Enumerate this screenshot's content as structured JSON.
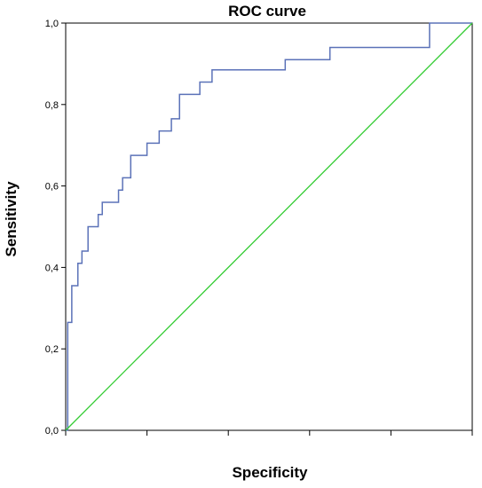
{
  "chart_data": {
    "type": "line",
    "title": "ROC curve",
    "xlabel": "Specificity",
    "ylabel": "Sensitivity",
    "xlim": [
      0,
      1
    ],
    "ylim": [
      0,
      1
    ],
    "x_ticks": [
      0,
      0.2,
      0.4,
      0.6,
      0.8,
      1.0
    ],
    "y_ticks": [
      0.0,
      0.2,
      0.4,
      0.6,
      0.8,
      1.0
    ],
    "y_tick_labels": [
      "0,0",
      "0,2",
      "0,4",
      "0,6",
      "0,8",
      "1,0"
    ],
    "grid": false,
    "colors": {
      "roc": "#5b72b8",
      "reference": "#33cc33"
    },
    "series": [
      {
        "kind": "step",
        "x": [
          0,
          0.005,
          0.005,
          0.015,
          0.015,
          0.03,
          0.03,
          0.04,
          0.04,
          0.055,
          0.055,
          0.08,
          0.08,
          0.09,
          0.09,
          0.13,
          0.13,
          0.14,
          0.14,
          0.16,
          0.16,
          0.2,
          0.2,
          0.23,
          0.23,
          0.26,
          0.26,
          0.28,
          0.28,
          0.33,
          0.33,
          0.36,
          0.36,
          0.54,
          0.54,
          0.65,
          0.65,
          0.895,
          0.895,
          1.0
        ],
        "y": [
          0,
          0,
          0.265,
          0.265,
          0.355,
          0.355,
          0.41,
          0.41,
          0.44,
          0.44,
          0.5,
          0.5,
          0.53,
          0.53,
          0.56,
          0.56,
          0.59,
          0.59,
          0.62,
          0.62,
          0.675,
          0.675,
          0.705,
          0.705,
          0.735,
          0.735,
          0.765,
          0.765,
          0.825,
          0.825,
          0.855,
          0.855,
          0.885,
          0.885,
          0.91,
          0.91,
          0.94,
          0.94,
          1.0,
          1.0
        ]
      },
      {
        "kind": "diagonal",
        "x": [
          0,
          1
        ],
        "y": [
          0,
          1
        ]
      }
    ]
  }
}
